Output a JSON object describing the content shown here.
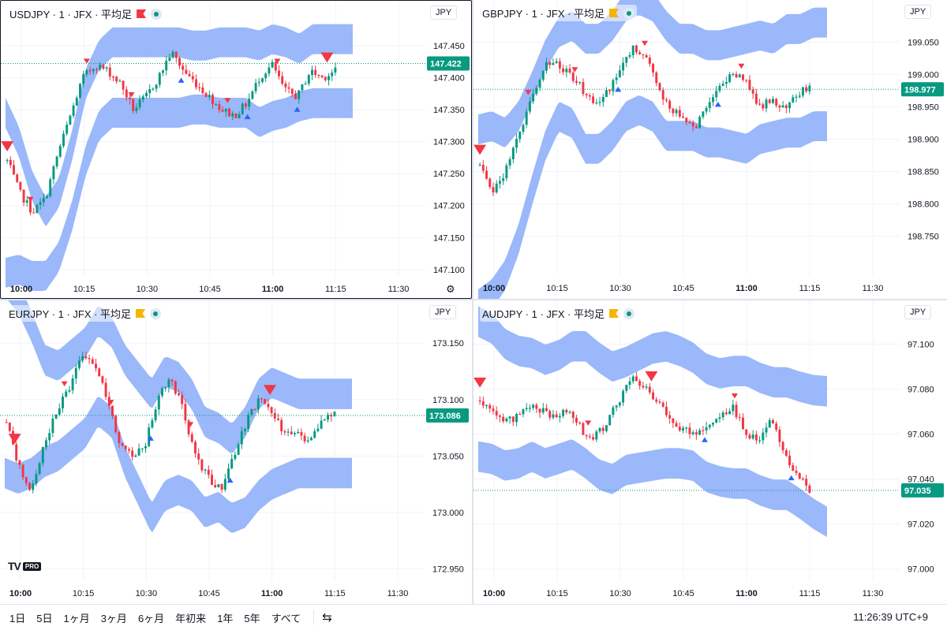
{
  "colors": {
    "band": "#8fb0fa",
    "up": "#089981",
    "down": "#f23645",
    "sigDown": "#f23645",
    "sigUp": "#2962ff",
    "grid": "#f0f3fa",
    "price": "#089981"
  },
  "panes": [
    {
      "id": "usdjpy",
      "symbol": "USDJPY",
      "interval": "1",
      "exchange": "JFX",
      "chartType": "平均足",
      "currency": "JPY",
      "active": true,
      "flag_color": "#f23645",
      "last_price": "147.422",
      "last_value": 147.422,
      "chart_data": {
        "type": "candlestick",
        "title": "USDJPY · 1 · JFX · 平均足",
        "ylim": [
          147.09,
          147.515
        ],
        "yticks": [
          "147.450",
          "147.400",
          "147.350",
          "147.300",
          "147.250",
          "147.200",
          "147.150",
          "147.100"
        ],
        "xticks": [
          "10:00",
          "10:15",
          "10:30",
          "10:45",
          "11:00",
          "11:15",
          "11:30"
        ],
        "path": [
          147.27,
          147.22,
          147.19,
          147.21,
          147.28,
          147.34,
          147.4,
          147.42,
          147.41,
          147.39,
          147.35,
          147.37,
          147.4,
          147.44,
          147.41,
          147.39,
          147.37,
          147.35,
          147.34,
          147.36,
          147.4,
          147.42,
          147.38,
          147.37,
          147.41,
          147.4,
          147.41
        ],
        "band_center": [
          147.22,
          147.2,
          147.16,
          147.14,
          147.17,
          147.24,
          147.33,
          147.38,
          147.4,
          147.4,
          147.4,
          147.4,
          147.4,
          147.4,
          147.4,
          147.4,
          147.4,
          147.4,
          147.4,
          147.39,
          147.4,
          147.4,
          147.4,
          147.41,
          147.41,
          147.41,
          147.41
        ],
        "band_width": [
          0.25,
          0.2,
          0.14,
          0.1,
          0.1,
          0.11,
          0.12,
          0.11,
          0.11,
          0.11,
          0.11,
          0.11,
          0.11,
          0.11,
          0.1,
          0.1,
          0.11,
          0.11,
          0.11,
          0.12,
          0.12,
          0.11,
          0.09,
          0.1,
          0.1,
          0.1,
          0.1
        ],
        "signals": [
          {
            "t": 0.5,
            "dir": "down",
            "big": true
          },
          {
            "t": 7.5,
            "dir": "down"
          },
          {
            "t": 24.5,
            "dir": "down"
          },
          {
            "t": 38,
            "dir": "down"
          },
          {
            "t": 67,
            "dir": "down"
          },
          {
            "t": 82,
            "dir": "down"
          },
          {
            "t": 97,
            "dir": "down",
            "big": true
          },
          {
            "t": 53,
            "dir": "up"
          },
          {
            "t": 73,
            "dir": "up"
          },
          {
            "t": 88,
            "dir": "up"
          }
        ]
      }
    },
    {
      "id": "gbpjpy",
      "symbol": "GBPJPY",
      "interval": "1",
      "exchange": "JFX",
      "chartType": "平均足",
      "currency": "JPY",
      "active": false,
      "flag_color": "#f5b400",
      "last_price": "198.977",
      "last_value": 198.977,
      "chart_data": {
        "type": "candlestick",
        "title": "GBPJPY · 1 · JFX · 平均足",
        "ylim": [
          198.69,
          199.11
        ],
        "yticks": [
          "199.050",
          "199.000",
          "198.950",
          "198.900",
          "198.850",
          "198.800",
          "198.750"
        ],
        "xticks": [
          "10:00",
          "10:15",
          "10:30",
          "10:45",
          "11:00",
          "11:15",
          "11:30"
        ],
        "path": [
          198.86,
          198.82,
          198.85,
          198.9,
          198.96,
          199.01,
          199.02,
          199.0,
          198.98,
          198.95,
          198.97,
          199.0,
          199.04,
          199.03,
          198.98,
          198.95,
          198.93,
          198.92,
          198.96,
          198.98,
          199.0,
          198.99,
          198.95,
          198.96,
          198.95,
          198.97,
          198.98
        ],
        "band_center": [
          198.78,
          198.79,
          198.8,
          198.84,
          198.9,
          198.96,
          199.0,
          199.0,
          198.97,
          198.97,
          198.99,
          199.02,
          199.03,
          199.02,
          198.99,
          198.98,
          198.98,
          198.97,
          198.97,
          198.97,
          198.97,
          198.98,
          198.98,
          198.99,
          198.99,
          199.0,
          199.0
        ],
        "band_width": [
          0.27,
          0.26,
          0.22,
          0.19,
          0.16,
          0.14,
          0.13,
          0.15,
          0.17,
          0.17,
          0.17,
          0.17,
          0.17,
          0.17,
          0.17,
          0.15,
          0.15,
          0.15,
          0.15,
          0.16,
          0.17,
          0.16,
          0.15,
          0.16,
          0.16,
          0.16,
          0.16
        ],
        "signals": [
          {
            "t": 0.5,
            "dir": "down",
            "big": true
          },
          {
            "t": 15,
            "dir": "down"
          },
          {
            "t": 29,
            "dir": "down"
          },
          {
            "t": 50,
            "dir": "down"
          },
          {
            "t": 79,
            "dir": "down"
          },
          {
            "t": 42,
            "dir": "up"
          },
          {
            "t": 72,
            "dir": "up"
          }
        ]
      }
    },
    {
      "id": "eurjpy",
      "symbol": "EURJPY",
      "interval": "1",
      "exchange": "JFX",
      "chartType": "平均足",
      "currency": "JPY",
      "active": false,
      "flag_color": "#f5b400",
      "last_price": "173.086",
      "last_value": 173.086,
      "chart_data": {
        "type": "candlestick",
        "title": "EURJPY · 1 · JFX · 平均足",
        "ylim": [
          172.94,
          173.185
        ],
        "yticks": [
          "173.150",
          "173.100",
          "173.050",
          "173.000",
          "172.950"
        ],
        "xticks": [
          "10:00",
          "10:15",
          "10:30",
          "10:45",
          "11:00",
          "11:15",
          "11:30"
        ],
        "path": [
          173.08,
          173.04,
          173.02,
          173.06,
          173.09,
          173.11,
          173.14,
          173.13,
          173.1,
          173.06,
          173.05,
          173.06,
          173.1,
          173.12,
          173.09,
          173.05,
          173.03,
          173.02,
          173.05,
          173.08,
          173.1,
          173.09,
          173.07,
          173.07,
          173.06,
          173.08,
          173.09
        ],
        "band_center": [
          173.12,
          173.11,
          173.1,
          173.09,
          173.09,
          173.1,
          173.11,
          173.13,
          173.12,
          173.09,
          173.07,
          173.05,
          173.07,
          173.07,
          173.06,
          173.04,
          173.04,
          173.03,
          173.04,
          173.06,
          173.07,
          173.07,
          173.07,
          173.07,
          173.07,
          173.07,
          173.07
        ],
        "band_width": [
          0.17,
          0.16,
          0.13,
          0.09,
          0.08,
          0.08,
          0.08,
          0.08,
          0.08,
          0.09,
          0.1,
          0.11,
          0.11,
          0.1,
          0.09,
          0.08,
          0.07,
          0.07,
          0.08,
          0.09,
          0.09,
          0.08,
          0.07,
          0.07,
          0.07,
          0.07,
          0.07
        ],
        "signals": [
          {
            "t": 3,
            "dir": "down",
            "big": true
          },
          {
            "t": 18,
            "dir": "down"
          },
          {
            "t": 32,
            "dir": "down"
          },
          {
            "t": 56,
            "dir": "down"
          },
          {
            "t": 80,
            "dir": "down",
            "big": true
          },
          {
            "t": 44,
            "dir": "up"
          },
          {
            "t": 68,
            "dir": "up"
          }
        ]
      }
    },
    {
      "id": "audjpy",
      "symbol": "AUDJPY",
      "interval": "1",
      "exchange": "JFX",
      "chartType": "平均足",
      "currency": "JPY",
      "active": false,
      "flag_color": "#f5b400",
      "last_price": "97.035",
      "last_value": 97.035,
      "chart_data": {
        "type": "candlestick",
        "title": "AUDJPY · 1 · JFX · 平均足",
        "ylim": [
          96.995,
          97.118
        ],
        "yticks": [
          "97.100",
          "97.080",
          "97.060",
          "97.040",
          "97.020",
          "97.000"
        ],
        "xticks": [
          "10:00",
          "10:15",
          "10:30",
          "10:45",
          "11:00",
          "11:15",
          "11:30"
        ],
        "path": [
          97.075,
          97.072,
          97.065,
          97.068,
          97.072,
          97.07,
          97.068,
          97.072,
          97.062,
          97.058,
          97.065,
          97.075,
          97.085,
          97.08,
          97.075,
          97.068,
          97.062,
          97.06,
          97.065,
          97.068,
          97.072,
          97.06,
          97.058,
          97.068,
          97.05,
          97.042,
          97.035
        ],
        "band_center": [
          97.08,
          97.078,
          97.073,
          97.072,
          97.073,
          97.07,
          97.072,
          97.075,
          97.073,
          97.068,
          97.065,
          97.068,
          97.07,
          97.072,
          97.073,
          97.072,
          97.07,
          97.065,
          97.063,
          97.063,
          97.063,
          97.06,
          97.058,
          97.058,
          97.055,
          97.052,
          97.05
        ],
        "band_width": [
          0.06,
          0.058,
          0.054,
          0.05,
          0.046,
          0.046,
          0.046,
          0.048,
          0.052,
          0.052,
          0.05,
          0.048,
          0.05,
          0.052,
          0.052,
          0.05,
          0.048,
          0.048,
          0.048,
          0.05,
          0.05,
          0.05,
          0.05,
          0.05,
          0.052,
          0.055,
          0.058
        ],
        "signals": [
          {
            "t": 0.5,
            "dir": "down",
            "big": true
          },
          {
            "t": 33,
            "dir": "down"
          },
          {
            "t": 52,
            "dir": "down",
            "big": true
          },
          {
            "t": 77,
            "dir": "down"
          },
          {
            "t": 68,
            "dir": "up"
          },
          {
            "t": 94,
            "dir": "up"
          }
        ]
      }
    }
  ],
  "bottom": {
    "ranges": [
      "1日",
      "5日",
      "1ヶ月",
      "3ヶ月",
      "6ヶ月",
      "年初来",
      "1年",
      "5年",
      "すべて"
    ],
    "clock": "11:26:39 UTC+9",
    "jump_icon": "goto-date-icon"
  },
  "brand": {
    "logo_text": "TV",
    "logo_badge": "PRO"
  }
}
